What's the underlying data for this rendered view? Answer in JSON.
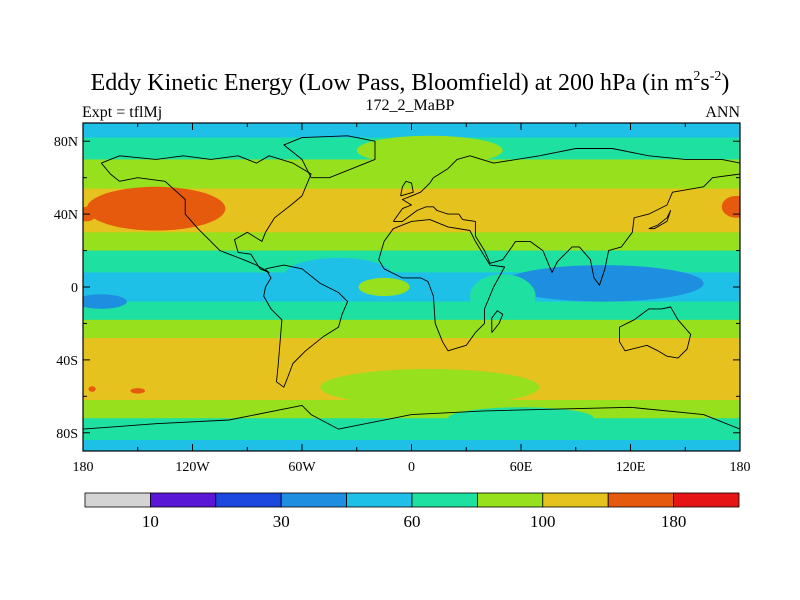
{
  "chart_data": {
    "type": "heatmap",
    "title": "Eddy Kinetic Energy (Low Pass, Bloomfield) at 200 hPa (in m",
    "title_units": {
      "m_exp": "2",
      "s": "s",
      "s_exp": "-2",
      "close": ")"
    },
    "subtitle": "172_2_MaBP",
    "left_string": "Expt = tflMj",
    "right_string": "ANN",
    "x_ticks": [
      {
        "value": -180,
        "label": "180"
      },
      {
        "value": -120,
        "label": "120W"
      },
      {
        "value": -60,
        "label": "60W"
      },
      {
        "value": 0,
        "label": "0"
      },
      {
        "value": 60,
        "label": "60E"
      },
      {
        "value": 120,
        "label": "120E"
      },
      {
        "value": 180,
        "label": "180"
      }
    ],
    "y_ticks": [
      {
        "value": 80,
        "label": "80N"
      },
      {
        "value": 40,
        "label": "40N"
      },
      {
        "value": 0,
        "label": "0"
      },
      {
        "value": -40,
        "label": "40S"
      },
      {
        "value": -80,
        "label": "80S"
      }
    ],
    "xlim": [
      -180,
      180
    ],
    "ylim": [
      -90,
      90
    ],
    "colorbar": {
      "colors": [
        "#d4d4d4",
        "#5a18d6",
        "#1c48e0",
        "#1e8ee0",
        "#1ec0e8",
        "#1ee0a0",
        "#96e01e",
        "#e6c21e",
        "#e65a0e",
        "#e61414"
      ],
      "labels": [
        {
          "boundary": 1,
          "label": "10"
        },
        {
          "boundary": 3,
          "label": "30"
        },
        {
          "boundary": 5,
          "label": "60"
        },
        {
          "boundary": 7,
          "label": "100"
        },
        {
          "boundary": 9,
          "label": "180"
        }
      ]
    },
    "field_bands": [
      {
        "lat": [
          82,
          90
        ],
        "level": 4
      },
      {
        "lat": [
          70,
          82
        ],
        "level": 5
      },
      {
        "lat": [
          54,
          70
        ],
        "level": 6
      },
      {
        "lat": [
          30,
          54
        ],
        "level": 7
      },
      {
        "lat": [
          20,
          30
        ],
        "level": 6
      },
      {
        "lat": [
          8,
          20
        ],
        "level": 5
      },
      {
        "lat": [
          -8,
          8
        ],
        "level": 4
      },
      {
        "lat": [
          -18,
          -8
        ],
        "level": 5
      },
      {
        "lat": [
          -28,
          -18
        ],
        "level": 6
      },
      {
        "lat": [
          -62,
          -28
        ],
        "level": 7
      },
      {
        "lat": [
          -72,
          -62
        ],
        "level": 6
      },
      {
        "lat": [
          -84,
          -72
        ],
        "level": 5
      },
      {
        "lat": [
          -90,
          -84
        ],
        "level": 4
      }
    ],
    "field_blobs": [
      {
        "lon": -140,
        "lat": 43,
        "rlon": 38,
        "rlat": 12,
        "level": 8
      },
      {
        "lon": 178,
        "lat": 44,
        "rlon": 8,
        "rlat": 6,
        "level": 8
      },
      {
        "lon": -178,
        "lat": 40,
        "rlon": 5,
        "rlat": 4,
        "level": 8
      },
      {
        "lon": 105,
        "lat": 2,
        "rlon": 55,
        "rlat": 10,
        "level": 3
      },
      {
        "lon": -170,
        "lat": -8,
        "rlon": 14,
        "rlat": 4,
        "level": 3
      },
      {
        "lon": -40,
        "lat": 6,
        "rlon": 30,
        "rlat": 10,
        "level": 4
      },
      {
        "lon": -15,
        "lat": 0,
        "rlon": 14,
        "rlat": 5,
        "level": 6
      },
      {
        "lon": 50,
        "lat": -5,
        "rlon": 18,
        "rlat": 12,
        "level": 5
      },
      {
        "lon": 10,
        "lat": 75,
        "rlon": 40,
        "rlat": 8,
        "level": 6
      },
      {
        "lon": 10,
        "lat": -55,
        "rlon": 60,
        "rlat": 10,
        "level": 6
      },
      {
        "lon": 60,
        "lat": -72,
        "rlon": 40,
        "rlat": 6,
        "level": 5
      },
      {
        "lon": -150,
        "lat": -57,
        "rlon": 4,
        "rlat": 1.5,
        "level": 8
      },
      {
        "lon": -175,
        "lat": -56,
        "rlon": 2,
        "rlat": 1.5,
        "level": 8
      }
    ],
    "coastlines": [
      [
        [
          -170,
          68
        ],
        [
          -160,
          72
        ],
        [
          -140,
          70
        ],
        [
          -125,
          72
        ],
        [
          -110,
          70
        ],
        [
          -95,
          72
        ],
        [
          -85,
          68
        ],
        [
          -78,
          72
        ],
        [
          -65,
          68
        ],
        [
          -55,
          62
        ],
        [
          -60,
          50
        ],
        [
          -66,
          45
        ],
        [
          -75,
          38
        ],
        [
          -80,
          30
        ],
        [
          -82,
          25
        ],
        [
          -90,
          30
        ],
        [
          -97,
          26
        ],
        [
          -95,
          19
        ],
        [
          -88,
          18
        ],
        [
          -83,
          10
        ],
        [
          -78,
          8
        ],
        [
          -85,
          12
        ],
        [
          -92,
          15
        ],
        [
          -105,
          20
        ],
        [
          -110,
          25
        ],
        [
          -117,
          32
        ],
        [
          -124,
          40
        ],
        [
          -124,
          48
        ],
        [
          -135,
          58
        ],
        [
          -150,
          60
        ],
        [
          -160,
          58
        ],
        [
          -165,
          62
        ],
        [
          -170,
          68
        ]
      ],
      [
        [
          -80,
          10
        ],
        [
          -70,
          12
        ],
        [
          -60,
          10
        ],
        [
          -50,
          2
        ],
        [
          -40,
          -3
        ],
        [
          -35,
          -8
        ],
        [
          -38,
          -15
        ],
        [
          -40,
          -22
        ],
        [
          -48,
          -27
        ],
        [
          -58,
          -35
        ],
        [
          -65,
          -42
        ],
        [
          -68,
          -50
        ],
        [
          -70,
          -55
        ],
        [
          -74,
          -52
        ],
        [
          -73,
          -42
        ],
        [
          -72,
          -30
        ],
        [
          -71,
          -18
        ],
        [
          -77,
          -12
        ],
        [
          -81,
          -5
        ],
        [
          -80,
          0
        ],
        [
          -77,
          5
        ],
        [
          -80,
          10
        ]
      ],
      [
        [
          -18,
          15
        ],
        [
          -15,
          25
        ],
        [
          -10,
          32
        ],
        [
          0,
          36
        ],
        [
          10,
          37
        ],
        [
          20,
          33
        ],
        [
          32,
          31
        ],
        [
          35,
          25
        ],
        [
          43,
          12
        ],
        [
          51,
          11
        ],
        [
          45,
          0
        ],
        [
          40,
          -12
        ],
        [
          40,
          -20
        ],
        [
          35,
          -25
        ],
        [
          30,
          -32
        ],
        [
          20,
          -35
        ],
        [
          17,
          -30
        ],
        [
          13,
          -20
        ],
        [
          12,
          -5
        ],
        [
          9,
          3
        ],
        [
          5,
          5
        ],
        [
          -5,
          5
        ],
        [
          -15,
          10
        ],
        [
          -18,
          15
        ]
      ],
      [
        [
          -10,
          36
        ],
        [
          -5,
          43
        ],
        [
          0,
          45
        ],
        [
          -5,
          48
        ],
        [
          0,
          50
        ],
        [
          5,
          52
        ],
        [
          8,
          55
        ],
        [
          10,
          57
        ],
        [
          12,
          60
        ],
        [
          20,
          65
        ],
        [
          25,
          70
        ],
        [
          32,
          72
        ],
        [
          45,
          68
        ],
        [
          70,
          72
        ],
        [
          90,
          76
        ],
        [
          110,
          76
        ],
        [
          130,
          72
        ],
        [
          150,
          70
        ],
        [
          170,
          70
        ],
        [
          180,
          68
        ],
        [
          180,
          62
        ],
        [
          165,
          60
        ],
        [
          160,
          55
        ],
        [
          143,
          52
        ],
        [
          140,
          45
        ],
        [
          130,
          40
        ],
        [
          122,
          38
        ],
        [
          121,
          30
        ],
        [
          115,
          22
        ],
        [
          108,
          20
        ],
        [
          106,
          10
        ],
        [
          103,
          1
        ],
        [
          100,
          5
        ],
        [
          98,
          15
        ],
        [
          92,
          22
        ],
        [
          88,
          22
        ],
        [
          80,
          14
        ],
        [
          77,
          8
        ],
        [
          72,
          20
        ],
        [
          65,
          25
        ],
        [
          57,
          25
        ],
        [
          55,
          22
        ],
        [
          50,
          15
        ],
        [
          43,
          13
        ],
        [
          40,
          20
        ],
        [
          35,
          28
        ],
        [
          35,
          36
        ],
        [
          28,
          37
        ],
        [
          26,
          40
        ],
        [
          20,
          40
        ],
        [
          14,
          42
        ],
        [
          12,
          44
        ],
        [
          8,
          44
        ],
        [
          3,
          42
        ],
        [
          -5,
          36
        ],
        [
          -10,
          36
        ]
      ],
      [
        [
          -55,
          60
        ],
        [
          -45,
          60
        ],
        [
          -20,
          70
        ],
        [
          -20,
          80
        ],
        [
          -35,
          83
        ],
        [
          -60,
          82
        ],
        [
          -70,
          78
        ],
        [
          -60,
          70
        ],
        [
          -55,
          60
        ]
      ],
      [
        [
          114,
          -22
        ],
        [
          122,
          -18
        ],
        [
          130,
          -12
        ],
        [
          137,
          -12
        ],
        [
          142,
          -11
        ],
        [
          146,
          -18
        ],
        [
          153,
          -26
        ],
        [
          151,
          -34
        ],
        [
          146,
          -39
        ],
        [
          140,
          -38
        ],
        [
          135,
          -35
        ],
        [
          129,
          -32
        ],
        [
          117,
          -35
        ],
        [
          114,
          -30
        ],
        [
          114,
          -22
        ]
      ],
      [
        [
          -6,
          50
        ],
        [
          -5,
          55
        ],
        [
          -3,
          58
        ],
        [
          0,
          57
        ],
        [
          1,
          52
        ],
        [
          -6,
          50
        ]
      ],
      [
        [
          130,
          32
        ],
        [
          135,
          34
        ],
        [
          140,
          38
        ],
        [
          142,
          42
        ],
        [
          140,
          36
        ],
        [
          133,
          32
        ],
        [
          130,
          32
        ]
      ],
      [
        [
          44,
          -25
        ],
        [
          48,
          -20
        ],
        [
          50,
          -15
        ],
        [
          47,
          -13
        ],
        [
          44,
          -17
        ],
        [
          44,
          -25
        ]
      ],
      [
        [
          -180,
          -78
        ],
        [
          -140,
          -75
        ],
        [
          -100,
          -73
        ],
        [
          -60,
          -65
        ],
        [
          -55,
          -70
        ],
        [
          -40,
          -78
        ],
        [
          0,
          -70
        ],
        [
          40,
          -68
        ],
        [
          80,
          -67
        ],
        [
          120,
          -66
        ],
        [
          160,
          -70
        ],
        [
          180,
          -78
        ]
      ]
    ]
  }
}
